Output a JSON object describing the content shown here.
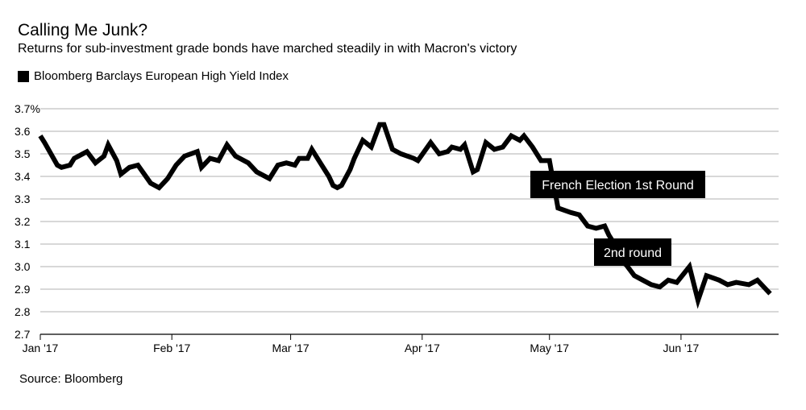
{
  "header": {
    "title": "Calling Me Junk?",
    "subtitle": "Returns for sub-investment grade bonds have marched steadily in with Macron's victory"
  },
  "legend": {
    "label": "Bloomberg Barclays European High Yield Index"
  },
  "source": "Source: Bloomberg",
  "colors": {
    "line": "#000000",
    "grid": "#999999",
    "background": "#ffffff",
    "annotation_bg": "#000000",
    "annotation_text": "#ffffff"
  },
  "chart_data": {
    "type": "line",
    "title": "Calling Me Junk?",
    "subtitle": "Returns for sub-investment grade bonds have marched steadily in with Macron's victory",
    "xlabel": "",
    "ylabel": "",
    "ylim": [
      2.7,
      3.7
    ],
    "y_ticks": [
      "2.7",
      "2.8",
      "2.9",
      "3.0",
      "3.1",
      "3.2",
      "3.3",
      "3.4",
      "3.5",
      "3.6",
      "3.7%"
    ],
    "x_ticks": [
      "Jan '17",
      "Feb '17",
      "Mar '17",
      "Apr '17",
      "May '17",
      "Jun '17"
    ],
    "x_tick_dates": [
      "2017-01-01",
      "2017-02-01",
      "2017-03-01",
      "2017-04-01",
      "2017-05-01",
      "2017-06-01"
    ],
    "grid": true,
    "legend_position": "top-left",
    "series": [
      {
        "name": "Bloomberg Barclays European High Yield Index",
        "x": [
          "2017-01-01",
          "2017-01-02",
          "2017-01-05",
          "2017-01-06",
          "2017-01-08",
          "2017-01-09",
          "2017-01-10",
          "2017-01-12",
          "2017-01-14",
          "2017-01-16",
          "2017-01-17",
          "2017-01-19",
          "2017-01-20",
          "2017-01-22",
          "2017-01-24",
          "2017-01-27",
          "2017-01-29",
          "2017-01-31",
          "2017-02-02",
          "2017-02-04",
          "2017-02-07",
          "2017-02-08",
          "2017-02-10",
          "2017-02-12",
          "2017-02-14",
          "2017-02-16",
          "2017-02-19",
          "2017-02-21",
          "2017-02-24",
          "2017-02-26",
          "2017-02-28",
          "2017-03-02",
          "2017-03-03",
          "2017-03-05",
          "2017-03-06",
          "2017-03-08",
          "2017-03-10",
          "2017-03-11",
          "2017-03-12",
          "2017-03-13",
          "2017-03-15",
          "2017-03-16",
          "2017-03-18",
          "2017-03-20",
          "2017-03-22",
          "2017-03-23",
          "2017-03-25",
          "2017-03-27",
          "2017-03-30",
          "2017-03-31",
          "2017-04-03",
          "2017-04-05",
          "2017-04-07",
          "2017-04-08",
          "2017-04-10",
          "2017-04-11",
          "2017-04-13",
          "2017-04-14",
          "2017-04-16",
          "2017-04-18",
          "2017-04-20",
          "2017-04-22",
          "2017-04-24",
          "2017-04-25",
          "2017-04-27",
          "2017-04-29",
          "2017-05-01",
          "2017-05-03",
          "2017-05-06",
          "2017-05-08",
          "2017-05-10",
          "2017-05-12",
          "2017-05-14",
          "2017-05-15",
          "2017-05-16",
          "2017-05-17",
          "2017-05-19",
          "2017-05-21",
          "2017-05-23",
          "2017-05-25",
          "2017-05-27",
          "2017-05-29",
          "2017-05-31",
          "2017-06-03",
          "2017-06-05",
          "2017-06-07",
          "2017-06-10",
          "2017-06-12",
          "2017-06-14",
          "2017-06-17",
          "2017-06-19",
          "2017-06-21",
          "2017-06-22"
        ],
        "values": [
          3.58,
          3.55,
          3.45,
          3.44,
          3.45,
          3.48,
          3.49,
          3.51,
          3.46,
          3.49,
          3.54,
          3.47,
          3.41,
          3.44,
          3.45,
          3.37,
          3.35,
          3.39,
          3.45,
          3.49,
          3.51,
          3.44,
          3.48,
          3.47,
          3.54,
          3.49,
          3.46,
          3.42,
          3.39,
          3.45,
          3.46,
          3.45,
          3.48,
          3.48,
          3.52,
          3.46,
          3.4,
          3.36,
          3.35,
          3.36,
          3.43,
          3.48,
          3.56,
          3.53,
          3.63,
          3.63,
          3.52,
          3.5,
          3.48,
          3.47,
          3.55,
          3.5,
          3.51,
          3.53,
          3.52,
          3.54,
          3.42,
          3.43,
          3.55,
          3.52,
          3.53,
          3.58,
          3.56,
          3.58,
          3.53,
          3.47,
          3.47,
          3.26,
          3.24,
          3.23,
          3.18,
          3.17,
          3.18,
          3.14,
          3.11,
          3.03,
          3.01,
          2.96,
          2.94,
          2.92,
          2.91,
          2.94,
          2.93,
          3.0,
          2.85,
          2.96,
          2.94,
          2.92,
          2.93,
          2.92,
          2.94,
          2.9,
          2.88
        ]
      }
    ],
    "annotations": [
      {
        "text": "French Election 1st Round",
        "date": "2017-04-23"
      },
      {
        "text": "2nd round",
        "date": "2017-05-07"
      }
    ]
  }
}
